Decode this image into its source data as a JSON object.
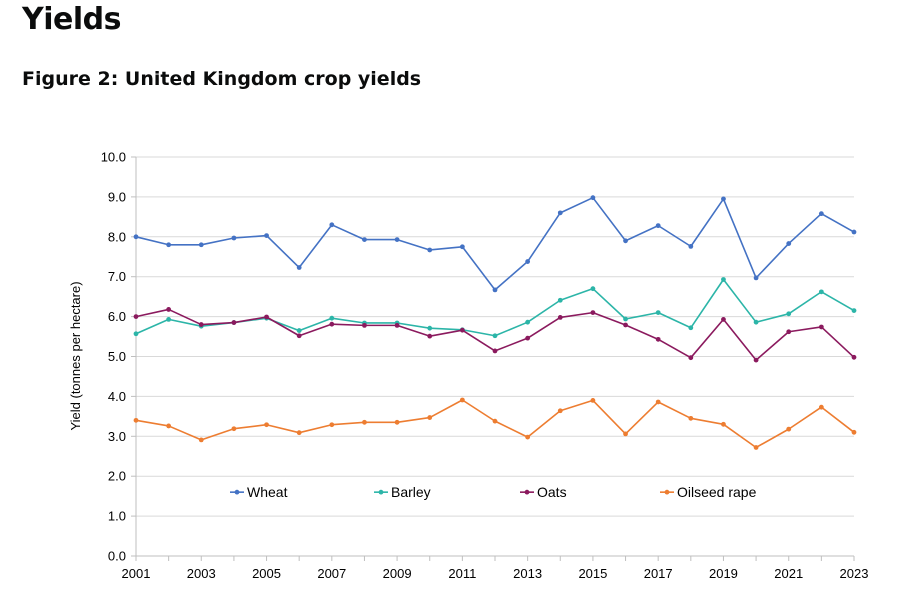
{
  "page": {
    "heading": "Yields",
    "figure_title": "Figure 2: United Kingdom crop yields"
  },
  "chart_data": {
    "type": "line",
    "title": "Figure 2: United Kingdom crop yields",
    "xlabel": "",
    "ylabel": "Yield (tonnes per hectare)",
    "x": [
      2001,
      2002,
      2003,
      2004,
      2005,
      2006,
      2007,
      2008,
      2009,
      2010,
      2011,
      2012,
      2013,
      2014,
      2015,
      2016,
      2017,
      2018,
      2019,
      2020,
      2021,
      2022,
      2023
    ],
    "x_tick_labels": [
      "2001",
      "2003",
      "2005",
      "2007",
      "2009",
      "2011",
      "2013",
      "2015",
      "2017",
      "2019",
      "2021",
      "2023"
    ],
    "y_tick_labels": [
      "0.0",
      "1.0",
      "2.0",
      "3.0",
      "4.0",
      "5.0",
      "6.0",
      "7.0",
      "8.0",
      "9.0",
      "10.0"
    ],
    "ylim": [
      0,
      10
    ],
    "grid": "horizontal",
    "legend_position": "inside-bottom",
    "series": [
      {
        "name": "Wheat",
        "color": "#4472c4",
        "values": [
          8.0,
          7.8,
          7.8,
          7.97,
          8.03,
          7.23,
          8.3,
          7.93,
          7.93,
          7.67,
          7.75,
          6.67,
          7.38,
          8.6,
          8.98,
          7.9,
          8.28,
          7.76,
          8.95,
          6.97,
          7.83,
          8.58,
          8.12
        ]
      },
      {
        "name": "Barley",
        "color": "#2cb5a8",
        "values": [
          5.57,
          5.93,
          5.76,
          5.85,
          5.96,
          5.65,
          5.96,
          5.84,
          5.84,
          5.71,
          5.67,
          5.52,
          5.86,
          6.41,
          6.7,
          5.94,
          6.1,
          5.72,
          6.93,
          5.86,
          6.07,
          6.62,
          6.15
        ]
      },
      {
        "name": "Oats",
        "color": "#8b1a5e",
        "values": [
          6.0,
          6.18,
          5.8,
          5.85,
          5.99,
          5.52,
          5.81,
          5.78,
          5.78,
          5.51,
          5.66,
          5.14,
          5.46,
          5.98,
          6.1,
          5.79,
          5.43,
          4.97,
          5.93,
          4.91,
          5.62,
          5.74,
          4.98
        ]
      },
      {
        "name": "Oilseed rape",
        "color": "#ed7d31",
        "values": [
          3.4,
          3.26,
          2.91,
          3.19,
          3.29,
          3.09,
          3.29,
          3.35,
          3.35,
          3.47,
          3.91,
          3.38,
          2.98,
          3.64,
          3.9,
          3.06,
          3.86,
          3.45,
          3.3,
          2.72,
          3.18,
          3.73,
          3.1
        ]
      }
    ]
  }
}
